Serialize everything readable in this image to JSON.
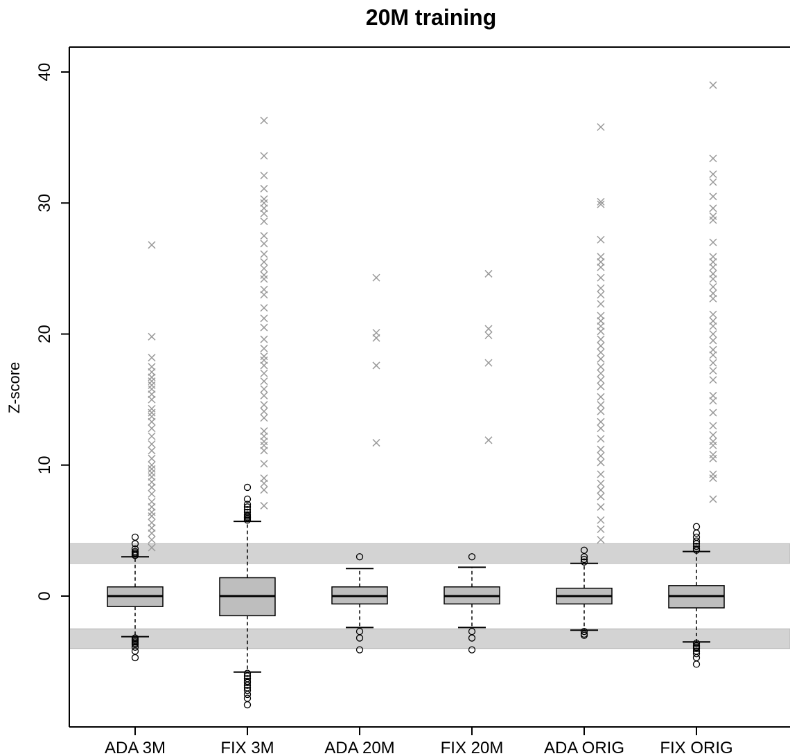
{
  "chart_data": {
    "type": "boxplot",
    "title": "20M training",
    "ylabel": "Z-score",
    "xlabel": "",
    "ylim": [
      -9,
      42
    ],
    "yticks": [
      "0",
      "10",
      "20",
      "30",
      "40"
    ],
    "ytick_values": [
      0,
      10,
      20,
      30,
      40
    ],
    "threshold_bands": [
      {
        "from": 2.5,
        "to": 4.0,
        "color": "#d3d3d3"
      },
      {
        "from": -4.0,
        "to": -2.5,
        "color": "#d3d3d3"
      }
    ],
    "colors": {
      "box_fill": "#bebebe",
      "band_fill": "#d3d3d3",
      "cross_marker": "#9a9a9a",
      "axis": "#000000"
    },
    "categories": [
      "ADA 3M",
      "FIX 3M",
      "ADA 20M",
      "FIX 20M",
      "ADA ORIG",
      "FIX ORIG"
    ],
    "boxes": [
      {
        "label": "ADA 3M",
        "whisker_low": -3.1,
        "q1": -0.8,
        "median": 0.0,
        "q3": 0.7,
        "whisker_high": 3.0,
        "outliers_low": [
          -3.2,
          -3.3,
          -3.4,
          -3.5,
          -3.6,
          -3.7,
          -3.9,
          -4.2,
          -4.7
        ],
        "outliers_high": [
          3.1,
          3.2,
          3.3,
          3.4,
          3.6,
          4.0,
          4.5
        ],
        "extreme_points": [
          3.7,
          4.3,
          4.8,
          5.2,
          5.6,
          6.1,
          6.4,
          6.8,
          7.2,
          7.8,
          8.3,
          8.7,
          9.1,
          9.4,
          9.7,
          10.0,
          10.5,
          11.1,
          11.6,
          12.2,
          12.8,
          13.3,
          13.7,
          14.0,
          14.3,
          15.0,
          15.4,
          15.8,
          16.1,
          16.4,
          16.7,
          17.1,
          17.5,
          18.2,
          19.8,
          26.8
        ]
      },
      {
        "label": "FIX 3M",
        "whisker_low": -5.8,
        "q1": -1.5,
        "median": 0.0,
        "q3": 1.4,
        "whisker_high": 5.7,
        "outliers_low": [
          -5.9,
          -6.1,
          -6.3,
          -6.5,
          -6.6,
          -6.8,
          -7.0,
          -7.2,
          -7.5,
          -7.8,
          -8.3
        ],
        "outliers_high": [
          5.8,
          5.9,
          6.0,
          6.1,
          6.2,
          6.4,
          6.6,
          6.8,
          7.0,
          7.4,
          8.3
        ],
        "extreme_points": [
          6.9,
          8.1,
          8.6,
          9.0,
          10.1,
          11.1,
          11.5,
          11.8,
          12.2,
          12.6,
          13.6,
          14.1,
          14.6,
          15.3,
          15.8,
          16.4,
          17.0,
          17.6,
          18.0,
          18.3,
          18.9,
          19.6,
          20.5,
          21.2,
          22.0,
          23.0,
          23.4,
          24.2,
          24.5,
          25.0,
          25.5,
          26.1,
          26.9,
          27.5,
          28.6,
          29.2,
          29.6,
          30.0,
          30.3,
          31.1,
          32.1,
          33.6,
          36.3
        ]
      },
      {
        "label": "ADA 20M",
        "whisker_low": -2.4,
        "q1": -0.6,
        "median": 0.0,
        "q3": 0.7,
        "whisker_high": 2.1,
        "outliers_low": [
          -2.7,
          -3.2,
          -4.1
        ],
        "outliers_high": [
          3.0
        ],
        "extreme_points": [
          11.7,
          17.6,
          19.7,
          20.1,
          24.3
        ]
      },
      {
        "label": "FIX 20M",
        "whisker_low": -2.4,
        "q1": -0.6,
        "median": 0.0,
        "q3": 0.7,
        "whisker_high": 2.2,
        "outliers_low": [
          -2.7,
          -3.2,
          -4.1
        ],
        "outliers_high": [
          3.0
        ],
        "extreme_points": [
          11.9,
          17.8,
          19.9,
          20.4,
          24.6
        ]
      },
      {
        "label": "ADA ORIG",
        "whisker_low": -2.6,
        "q1": -0.6,
        "median": 0.0,
        "q3": 0.6,
        "whisker_high": 2.5,
        "outliers_low": [
          -2.7,
          -2.9,
          -3.0
        ],
        "outliers_high": [
          2.6,
          2.8,
          3.0,
          3.5
        ],
        "extreme_points": [
          4.3,
          5.1,
          5.8,
          6.8,
          7.6,
          8.1,
          8.6,
          9.3,
          10.2,
          10.7,
          11.2,
          12.0,
          12.8,
          13.3,
          14.1,
          14.6,
          15.2,
          16.0,
          16.5,
          17.0,
          17.5,
          18.1,
          18.6,
          19.1,
          19.6,
          20.2,
          20.6,
          21.0,
          21.4,
          22.3,
          23.0,
          23.5,
          24.3,
          25.1,
          25.5,
          25.9,
          27.2,
          29.9,
          30.1,
          35.8
        ]
      },
      {
        "label": "FIX ORIG",
        "whisker_low": -3.5,
        "q1": -0.9,
        "median": 0.0,
        "q3": 0.8,
        "whisker_high": 3.4,
        "outliers_low": [
          -3.6,
          -3.8,
          -3.9,
          -4.0,
          -4.2,
          -4.4,
          -4.7,
          -5.2
        ],
        "outliers_high": [
          3.5,
          3.6,
          3.8,
          4.0,
          4.2,
          4.5,
          4.8,
          5.3
        ],
        "extreme_points": [
          7.4,
          9.0,
          9.3,
          10.5,
          10.8,
          11.5,
          11.8,
          12.3,
          13.0,
          14.0,
          14.9,
          15.3,
          16.5,
          17.2,
          17.8,
          18.4,
          18.8,
          19.5,
          20.0,
          20.6,
          21.0,
          21.5,
          22.7,
          23.1,
          23.6,
          24.2,
          24.6,
          25.1,
          25.5,
          25.9,
          27.0,
          28.7,
          29.0,
          29.6,
          30.5,
          31.6,
          32.2,
          33.4,
          39.0
        ]
      }
    ]
  }
}
